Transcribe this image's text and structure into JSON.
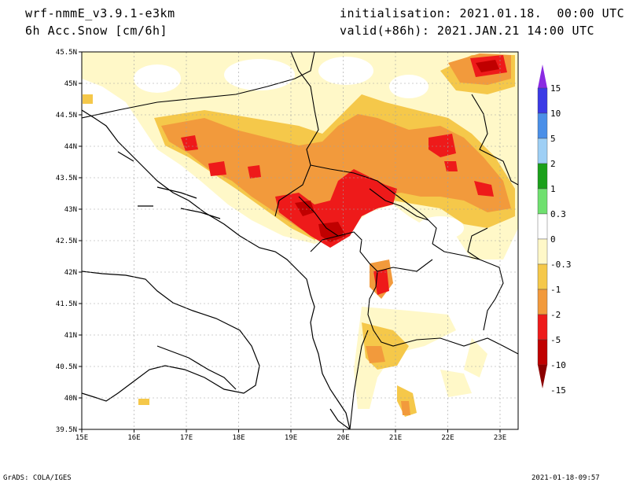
{
  "header": {
    "model": "wrf-nmmE_v3.9.1-e3km",
    "variable": "6h Acc.Snow [cm/6h]",
    "initialisation": "initialisation: 2021.01.18.  00:00 UTC",
    "valid": "valid(+86h): 2021.JAN.21 14:00 UTC"
  },
  "footer": {
    "left": "GrADS: COLA/IGES",
    "right": "2021-01-18-09:57"
  },
  "map": {
    "lon_labels": [
      "15E",
      "16E",
      "17E",
      "18E",
      "19E",
      "20E",
      "21E",
      "22E",
      "23E"
    ],
    "lat_labels": [
      "45.5N",
      "45N",
      "44.5N",
      "44N",
      "43.5N",
      "43N",
      "42.5N",
      "42N",
      "41.5N",
      "41N",
      "40.5N",
      "40N",
      "39.5N"
    ]
  },
  "colorbar": {
    "labels": [
      "15",
      "10",
      "5",
      "2",
      "1",
      "0.3",
      "0",
      "-0.3",
      "-1",
      "-2",
      "-5",
      "-10",
      "-15"
    ],
    "colors": [
      "#8a2be2",
      "#3a3ae6",
      "#4a8fe8",
      "#9ecff5",
      "#1aa01a",
      "#6fe06f",
      "#ffffff",
      "#fff8c8",
      "#f5c84a",
      "#f29a3c",
      "#ee1a1a",
      "#c00000",
      "#8b0000"
    ]
  }
}
